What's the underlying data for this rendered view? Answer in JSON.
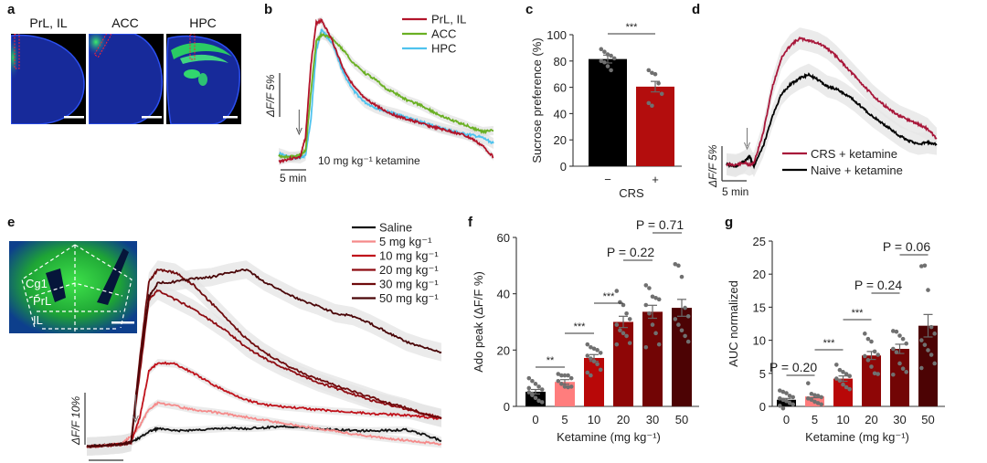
{
  "panels": {
    "a": {
      "label": "a",
      "images": [
        {
          "title": "PrL, IL",
          "region": "prl-il"
        },
        {
          "title": "ACC",
          "region": "acc"
        },
        {
          "title": "HPC",
          "region": "hpc"
        }
      ]
    },
    "b": {
      "label": "b"
    },
    "c": {
      "label": "c"
    },
    "d": {
      "label": "d"
    },
    "e": {
      "label": "e",
      "inset_labels": [
        "Cg1",
        "PrL",
        "IL"
      ]
    },
    "f": {
      "label": "f"
    },
    "g": {
      "label": "g"
    }
  },
  "colors": {
    "prl_il": "#b2142a",
    "acc": "#6ab023",
    "hpc": "#4fc3ee",
    "crs": "#a8173a",
    "naive": "#000000",
    "saline": "#111111",
    "dose5": "#f58a8a",
    "dose10": "#c0121b",
    "dose20": "#8e0c12",
    "dose30": "#6e0a0c",
    "dose50": "#4a0608",
    "sem_band": "#d8d8d8",
    "dot": "#707070"
  },
  "chart_data": [
    {
      "id": "b",
      "type": "line",
      "title": "",
      "scale_bar_y": "ΔF/F 5%",
      "scale_bar_x": "5 min",
      "annotation": "10 mg kg⁻¹ ketamine",
      "legend_position": "top-right",
      "x_minutes": [
        0,
        2,
        4,
        5,
        6,
        7,
        8,
        10,
        12,
        14,
        16,
        18,
        20,
        22,
        24,
        26,
        28,
        30,
        32,
        34,
        36,
        38,
        40
      ],
      "series": [
        {
          "name": "PrL, IL",
          "values": [
            0.3,
            0.6,
            0.8,
            3,
            11,
            15.5,
            15.8,
            13.5,
            10.5,
            8.5,
            7.2,
            6.5,
            5.8,
            5.3,
            4.9,
            4.6,
            4.2,
            3.9,
            3.6,
            3.3,
            2.8,
            2.0,
            0.8
          ]
        },
        {
          "name": "ACC",
          "values": [
            0.9,
            0.8,
            1.0,
            1.5,
            8,
            13.5,
            14.2,
            13.8,
            12.5,
            11,
            10,
            9.3,
            8.3,
            7.7,
            7.0,
            6.6,
            6.0,
            5.4,
            4.9,
            4.5,
            4.0,
            3.6,
            3.7
          ]
        },
        {
          "name": "HPC",
          "values": [
            1.2,
            0.8,
            0.7,
            1.0,
            5,
            12.5,
            14.8,
            13.2,
            10.0,
            8.0,
            6.8,
            6.2,
            5.8,
            5.5,
            5.1,
            4.7,
            4.4,
            4.0,
            3.7,
            3.4,
            3.2,
            2.9,
            2.3
          ]
        }
      ]
    },
    {
      "id": "c",
      "type": "bar",
      "categories": [
        "−",
        "+"
      ],
      "values": [
        81.5,
        60.5
      ],
      "sem": [
        3.0,
        4.0
      ],
      "colors": [
        "#000000",
        "#b30d0d"
      ],
      "points": [
        [
          89,
          87,
          85,
          84,
          82,
          80,
          79,
          76,
          73
        ],
        [
          73,
          71,
          70,
          63,
          55,
          48,
          46
        ]
      ],
      "xlabel": "CRS",
      "ylabel": "Sucrose preference (%)",
      "yticks": [
        0,
        20,
        40,
        60,
        80,
        100
      ],
      "ylim": [
        0,
        100
      ],
      "significance": [
        {
          "from": 0,
          "to": 1,
          "label": "***"
        }
      ]
    },
    {
      "id": "d",
      "type": "line",
      "scale_bar_y": "ΔF/F 5%",
      "scale_bar_x": "5 min",
      "legend_position": "bottom-right",
      "x_minutes": [
        0,
        2,
        4,
        5,
        6,
        8,
        10,
        12,
        14,
        16,
        18,
        20,
        22,
        24,
        26,
        28,
        30,
        32,
        34,
        36,
        38,
        40,
        42,
        44,
        46
      ],
      "series": [
        {
          "name": "CRS + ketamine",
          "values": [
            0.3,
            0.2,
            0.5,
            0.2,
            0.5,
            5,
            12,
            16.5,
            18.5,
            19.5,
            19.2,
            18.8,
            18,
            16.8,
            15.3,
            13.8,
            12.3,
            10.8,
            9.6,
            8.5,
            7.6,
            7.0,
            6.4,
            5.7,
            4.2
          ]
        },
        {
          "name": "Naive + ketamine",
          "values": [
            0.3,
            0.0,
            0.8,
            1.5,
            0.0,
            3,
            7.5,
            11,
            12.5,
            13.4,
            14.0,
            13.2,
            12.2,
            11.8,
            11.0,
            10.0,
            8.8,
            7.6,
            6.6,
            5.6,
            4.6,
            3.8,
            3.4,
            3.6,
            3.4
          ]
        }
      ]
    },
    {
      "id": "e",
      "type": "line",
      "scale_bar_y": "ΔF/F 10%",
      "scale_bar_x": "5 min",
      "legend_position": "top-right",
      "x_minutes": [
        0,
        2,
        4,
        5,
        6,
        7,
        8,
        10,
        12,
        14,
        16,
        18,
        20,
        22,
        24,
        26,
        28,
        30,
        32,
        34,
        36,
        38,
        40
      ],
      "series": [
        {
          "name": "Saline",
          "values": [
            0,
            0.5,
            1,
            1.5,
            3,
            5,
            6,
            5.2,
            5.5,
            5.8,
            6.2,
            6.0,
            6.3,
            6.8,
            6.5,
            6.0,
            5.6,
            5.4,
            5.2,
            5.4,
            5.6,
            4.0,
            2.0
          ]
        },
        {
          "name": "5 mg kg⁻¹",
          "values": [
            0,
            0.5,
            1,
            3.5,
            7,
            12.5,
            14.5,
            13.5,
            12.3,
            11.6,
            10.8,
            9.8,
            8.8,
            7.8,
            6.9,
            6.0,
            5.2,
            4.2,
            3.4,
            2.7,
            2.1,
            1.4,
            0.8
          ]
        },
        {
          "name": "10 mg kg⁻¹",
          "values": [
            0,
            0.3,
            0.8,
            1.5,
            10,
            25,
            28,
            27.5,
            24.5,
            21,
            18,
            15.6,
            14,
            13.3,
            12.8,
            12.3,
            11.8,
            11.5,
            11.0,
            10.7,
            10.5,
            9.9,
            9.3
          ]
        },
        {
          "name": "20 mg kg⁻¹",
          "values": [
            0,
            0.3,
            0.8,
            1.5,
            25,
            49,
            52,
            49,
            46,
            42,
            38,
            33,
            29.5,
            26.5,
            24,
            21.5,
            19.5,
            17.5,
            15.5,
            14,
            12.5,
            11,
            9.5
          ]
        },
        {
          "name": "30 mg kg⁻¹",
          "values": [
            0,
            0.3,
            0.8,
            1.5,
            30,
            55,
            59,
            58,
            54,
            48,
            42,
            36,
            31.5,
            28,
            25,
            22.5,
            20.5,
            18.5,
            16.5,
            14.5,
            13,
            11,
            9.5
          ]
        },
        {
          "name": "50 mg kg⁻¹",
          "values": [
            0,
            0.3,
            0.8,
            1.5,
            28,
            50,
            54.5,
            55,
            56,
            56.5,
            58,
            59,
            55,
            52,
            49,
            47,
            44.5,
            43.5,
            41,
            38,
            35,
            33,
            31.5
          ]
        }
      ]
    },
    {
      "id": "f",
      "type": "bar",
      "categories": [
        "0",
        "5",
        "10",
        "20",
        "30",
        "50"
      ],
      "values": [
        5.2,
        8.7,
        17.2,
        30.0,
        33.6,
        35.0
      ],
      "sem": [
        0.8,
        0.8,
        1.2,
        2.0,
        2.3,
        3.0
      ],
      "colors": [
        "#000000",
        "#ff7d7d",
        "#b80808",
        "#8e0606",
        "#720505",
        "#4c0304"
      ],
      "points": [
        [
          10,
          9,
          8,
          7,
          6,
          5,
          4,
          3,
          2,
          1.5,
          6.5,
          4.5
        ],
        [
          11.5,
          11,
          11,
          11,
          10,
          9,
          8,
          7,
          6.8,
          7
        ],
        [
          22,
          21,
          20.5,
          20,
          19,
          18,
          17,
          16,
          15,
          13,
          12,
          11
        ],
        [
          41,
          37,
          36,
          33,
          31,
          29,
          27,
          26,
          25,
          22.5,
          22
        ],
        [
          43,
          42,
          39,
          38.5,
          38,
          36,
          33,
          29,
          26,
          22,
          21
        ],
        [
          50.5,
          50,
          46,
          35,
          32,
          31,
          29,
          27,
          25,
          23
        ]
      ],
      "xlabel": "Ketamine (mg kg⁻¹)",
      "ylabel": "Ado peak (ΔF/F %)",
      "yticks": [
        0,
        20,
        40,
        60
      ],
      "ylim": [
        0,
        60
      ],
      "significance": [
        {
          "from": 0,
          "to": 1,
          "label": "**"
        },
        {
          "from": 1,
          "to": 2,
          "label": "***"
        },
        {
          "from": 2,
          "to": 3,
          "label": "***"
        },
        {
          "from": 3,
          "to": 4,
          "label": "P = 0.22"
        },
        {
          "from": 4,
          "to": 5,
          "label": "P = 0.71"
        }
      ]
    },
    {
      "id": "g",
      "type": "bar",
      "categories": [
        "0",
        "5",
        "10",
        "20",
        "30",
        "50"
      ],
      "values": [
        1.0,
        1.5,
        4.2,
        7.7,
        8.7,
        12.2
      ],
      "sem": [
        0.2,
        0.2,
        0.4,
        0.6,
        0.7,
        1.7
      ],
      "colors": [
        "#000000",
        "#ff7d7d",
        "#b80808",
        "#8e0606",
        "#720505",
        "#4c0304"
      ],
      "points": [
        [
          2.4,
          2.2,
          2.0,
          1.6,
          1.4,
          1.2,
          1.0,
          0.8,
          0.5,
          0.3,
          0.1,
          -0.3
        ],
        [
          3.5,
          1.9,
          1.7,
          1.6,
          1.4,
          1.2,
          1.0,
          0.7,
          0.5,
          0.3
        ],
        [
          6.3,
          5.5,
          5.2,
          4.9,
          4.6,
          4.2,
          3.9,
          3.3,
          2.9,
          2.6
        ],
        [
          11.0,
          10.2,
          9.8,
          8.3,
          7.8,
          7.6,
          7.0,
          6.0,
          5.0,
          4.9
        ],
        [
          11.4,
          11.3,
          10.7,
          10.2,
          9.5,
          8.7,
          8.2,
          6.5,
          5.7,
          5.2,
          4.8
        ],
        [
          21.2,
          21.3,
          17.6,
          12.0,
          11.0,
          10.0,
          9.3,
          8.5,
          7.8,
          6.5,
          5.8
        ]
      ],
      "xlabel": "Ketamine (mg kg⁻¹)",
      "ylabel": "AUC normalized",
      "yticks": [
        0,
        5,
        10,
        15,
        20,
        25
      ],
      "ylim": [
        0,
        25
      ],
      "significance": [
        {
          "from": 0,
          "to": 1,
          "label": "P = 0.20"
        },
        {
          "from": 1,
          "to": 2,
          "label": "***"
        },
        {
          "from": 2,
          "to": 3,
          "label": "***"
        },
        {
          "from": 3,
          "to": 4,
          "label": "P = 0.24"
        },
        {
          "from": 4,
          "to": 5,
          "label": "P = 0.06"
        }
      ]
    }
  ]
}
